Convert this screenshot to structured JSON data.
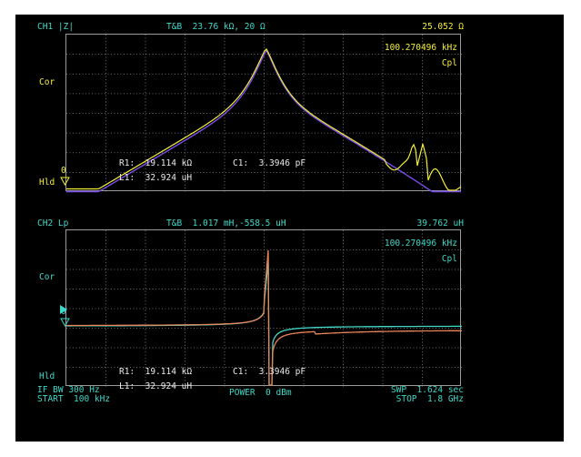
{
  "ch1": {
    "header_left": "CH1 |Z|",
    "header_center": "T&B  23.76 kΩ, 20 Ω",
    "header_right": "25.052 Ω",
    "marker_freq": "100.270496 kHz",
    "mode": "Cpl",
    "label_cor": "Cor",
    "label_hld": "Hld",
    "ref_zero": "0",
    "params": {
      "r1": "R1:  19.114 kΩ",
      "c1": "C1:  3.3946 pF",
      "l1": "L1:  32.924 uH"
    },
    "colors": {
      "trace_yellow": "#f4ee3a",
      "trace_purple": "#7a4de8"
    }
  },
  "ch2": {
    "header_left": "CH2 Lp",
    "header_center": "T&B  1.017 mH,-558.5 uH",
    "header_right": "39.762 uH",
    "marker_freq": "100.270496 kHz",
    "mode": "Cpl",
    "label_cor": "Cor",
    "label_hld": "Hld",
    "ref_zero": "0",
    "params": {
      "r1": "R1:  19.114 kΩ",
      "c1": "C1:  3.3946 pF",
      "l1": "L1:  32.924 uH"
    },
    "colors": {
      "trace_cyan": "#3fd8c8",
      "trace_orange": "#e8845a"
    }
  },
  "footer": {
    "if_bw": "IF BW 300 Hz",
    "start": "START  100 kHz",
    "power": "POWER  0 dBm",
    "swp": "SWP  1.624 sec",
    "stop": "STOP  1.8 GHz"
  }
}
